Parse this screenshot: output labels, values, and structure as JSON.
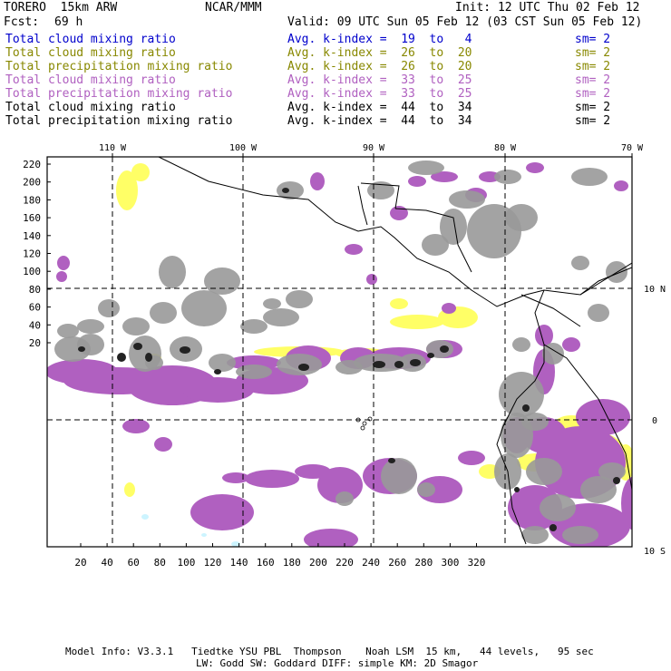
{
  "header": {
    "model": "TORERO  15km ARW",
    "org": "NCAR/MMM",
    "init": "Init: 12 UTC Thu 02 Feb 12",
    "fcst_label": "Fcst:",
    "fcst_value": "69 h",
    "valid": "Valid: 09 UTC Sun 05 Feb 12 (03 CST Sun 05 Feb 12)"
  },
  "legend": [
    {
      "field": "Total cloud mixing ratio",
      "kindex": "Avg. k-index =  19  to   4",
      "sm": "sm= 2",
      "color": "#0000cc"
    },
    {
      "field": "Total cloud mixing ratio",
      "kindex": "Avg. k-index =  26  to  20",
      "sm": "sm= 2",
      "color": "#888800"
    },
    {
      "field": "Total precipitation mixing ratio",
      "kindex": "Avg. k-index =  26  to  20",
      "sm": "sm= 2",
      "color": "#888800"
    },
    {
      "field": "Total cloud mixing ratio",
      "kindex": "Avg. k-index =  33  to  25",
      "sm": "sm= 2",
      "color": "#b060c0"
    },
    {
      "field": "Total precipitation mixing ratio",
      "kindex": "Avg. k-index =  33  to  25",
      "sm": "sm= 2",
      "color": "#b060c0"
    },
    {
      "field": "Total cloud mixing ratio",
      "kindex": "Avg. k-index =  44  to  34",
      "sm": "sm= 2",
      "color": "#000000"
    },
    {
      "field": "Total precipitation mixing ratio",
      "kindex": "Avg. k-index =  44  to  34",
      "sm": "sm= 2",
      "color": "#000000"
    }
  ],
  "map": {
    "lon_labels": [
      "110 W",
      "100 W",
      "90 W",
      "80 W",
      "70 W"
    ],
    "lat_labels": [
      "10 N",
      "0",
      "10 S"
    ],
    "y_ticks": [
      "220",
      "200",
      "180",
      "160",
      "140",
      "120",
      "100",
      "80",
      "60",
      "40",
      "20"
    ],
    "x_ticks": [
      "20",
      "40",
      "60",
      "80",
      "100",
      "120",
      "140",
      "160",
      "180",
      "200",
      "220",
      "240",
      "260",
      "280",
      "300",
      "320"
    ],
    "colors": {
      "yellow": "#ffff66",
      "purple": "#b060c0",
      "gray": "#999999",
      "dark": "#222222",
      "cyan": "#ccf4ff"
    }
  },
  "footer": {
    "line1": "Model Info: V3.3.1   Tiedtke YSU PBL  Thompson    Noah LSM  15 km,   44 levels,   95 sec",
    "line2": "LW: Godd SW: Goddard DIFF: simple KM: 2D Smagor"
  }
}
